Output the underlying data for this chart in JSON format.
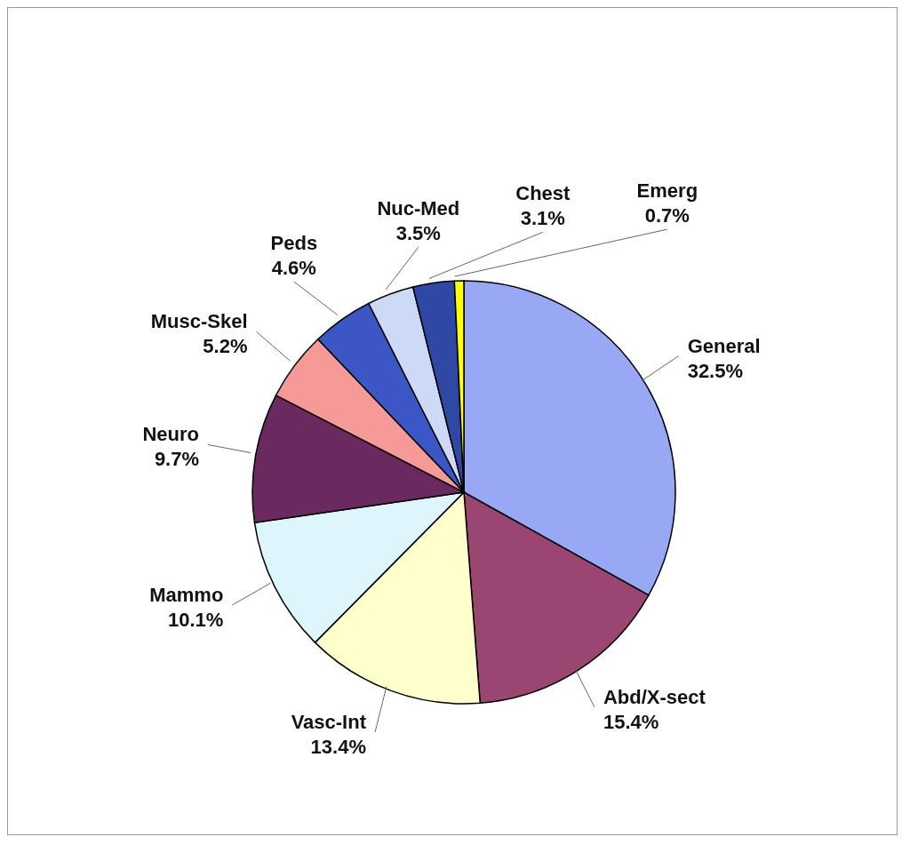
{
  "chart_data": {
    "type": "pie",
    "categories": [
      "General",
      "Abd/X-sect",
      "Vasc-Int",
      "Mammo",
      "Neuro",
      "Musc-Skel",
      "Peds",
      "Nuc-Med",
      "Chest",
      "Emerg"
    ],
    "values": [
      32.5,
      15.4,
      13.4,
      10.1,
      9.7,
      5.2,
      4.6,
      3.5,
      3.1,
      0.7
    ],
    "value_labels": [
      "32.5%",
      "15.4%",
      "13.4%",
      "10.1%",
      "9.7%",
      "5.2%",
      "4.6%",
      "3.5%",
      "3.1%",
      "0.7%"
    ],
    "colors": [
      "#99a8f5",
      "#9b4670",
      "#ffffcc",
      "#ddf6fb",
      "#6a2a60",
      "#f59a96",
      "#3b57c6",
      "#ccdaf8",
      "#2f48a6",
      "#ffff00"
    ],
    "legend": false
  }
}
